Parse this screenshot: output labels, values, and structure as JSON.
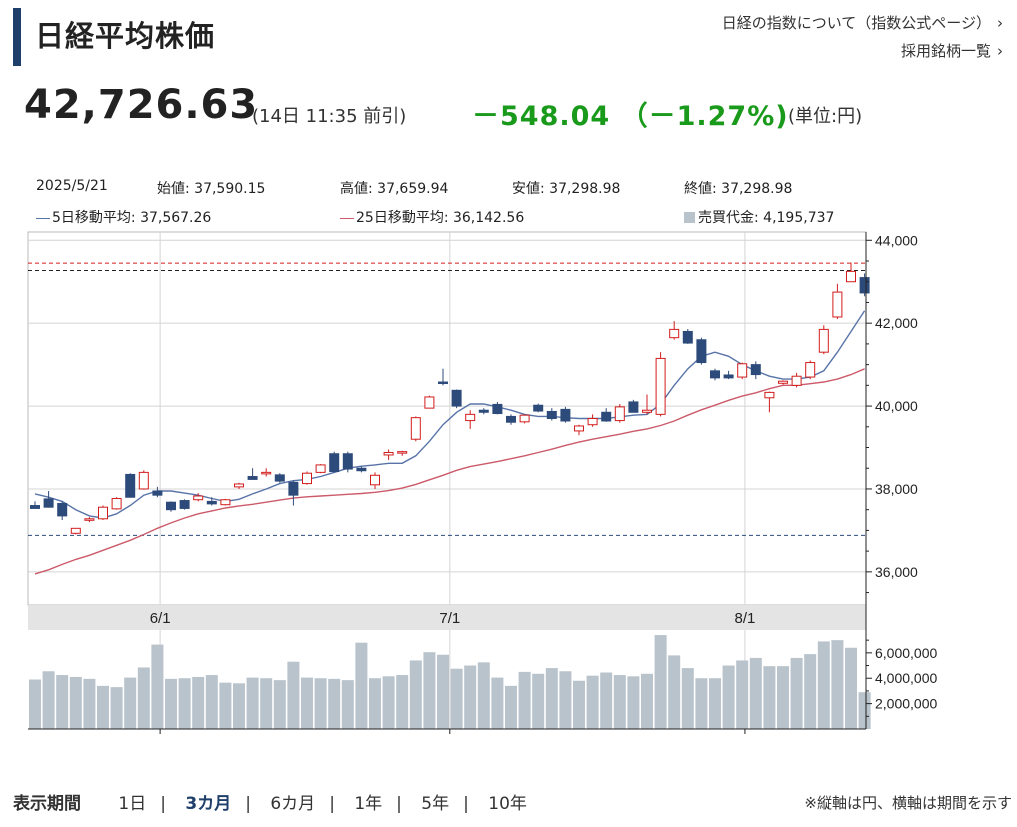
{
  "header": {
    "title": "日経平均株価",
    "links": [
      "日経の指数について（指数公式ページ）",
      "採用銘柄一覧"
    ],
    "link_chevron": "chevron-right-icon"
  },
  "quote": {
    "price": "42,726.63",
    "time": "(14日 11:35 前引)",
    "change": "－548.04 （－1.27%)",
    "unit": "(単位:円)",
    "change_color": "#1a9a1a"
  },
  "info": {
    "date": "2025/5/21",
    "open": "始値: 37,590.15",
    "high": "高値: 37,659.94",
    "low": "安値: 37,298.98",
    "close": "終値: 37,298.98",
    "ma5": "5日移動平均: 37,567.26",
    "ma25": "25日移動平均: 36,142.56",
    "volume": "売買代金: 4,195,737"
  },
  "colors": {
    "up": "#d21c1c",
    "down": "#2d4b7a",
    "ma5": "#5873a8",
    "ma25": "#cc5a6a",
    "volume": "#b8c3cc"
  },
  "chart_data": {
    "type": "candlestick",
    "xaxis_labels": [
      "6/1",
      "7/1",
      "8/1"
    ],
    "yaxis_ticks": [
      "44,000",
      "42,000",
      "40,000",
      "38,000",
      "36,000"
    ],
    "ylim": [
      35200,
      44200
    ],
    "volume_ticks": [
      "6,000,000",
      "4,000,000",
      "2,000,000"
    ],
    "volume_ylim": [
      0,
      7800000
    ],
    "reference_lines": {
      "high_marker": 43450,
      "prev_close_marker": 43270,
      "low_marker": 36880
    },
    "candles": [
      {
        "o": 37600,
        "h": 37700,
        "l": 37550,
        "c": 37530
      },
      {
        "o": 37760,
        "h": 37950,
        "l": 37550,
        "c": 37560
      },
      {
        "o": 37650,
        "h": 37700,
        "l": 37250,
        "c": 37350
      },
      {
        "o": 36930,
        "h": 37000,
        "l": 36900,
        "c": 37050
      },
      {
        "o": 37260,
        "h": 37320,
        "l": 37200,
        "c": 37280
      },
      {
        "o": 37280,
        "h": 37600,
        "l": 37250,
        "c": 37560
      },
      {
        "o": 37520,
        "h": 37800,
        "l": 37500,
        "c": 37770
      },
      {
        "o": 38350,
        "h": 38380,
        "l": 37800,
        "c": 37800
      },
      {
        "o": 38000,
        "h": 38450,
        "l": 37980,
        "c": 38400
      },
      {
        "o": 37950,
        "h": 38050,
        "l": 37800,
        "c": 37850
      },
      {
        "o": 37680,
        "h": 37700,
        "l": 37450,
        "c": 37500
      },
      {
        "o": 37720,
        "h": 37750,
        "l": 37500,
        "c": 37530
      },
      {
        "o": 37740,
        "h": 37900,
        "l": 37700,
        "c": 37830
      },
      {
        "o": 37700,
        "h": 37800,
        "l": 37600,
        "c": 37640
      },
      {
        "o": 37620,
        "h": 37760,
        "l": 37600,
        "c": 37740
      },
      {
        "o": 38050,
        "h": 38150,
        "l": 38000,
        "c": 38120
      },
      {
        "o": 38300,
        "h": 38500,
        "l": 38250,
        "c": 38230
      },
      {
        "o": 38380,
        "h": 38500,
        "l": 38300,
        "c": 38400
      },
      {
        "o": 38340,
        "h": 38380,
        "l": 38150,
        "c": 38190
      },
      {
        "o": 38160,
        "h": 38200,
        "l": 37600,
        "c": 37850
      },
      {
        "o": 38130,
        "h": 38420,
        "l": 38100,
        "c": 38380
      },
      {
        "o": 38400,
        "h": 38600,
        "l": 38380,
        "c": 38580
      },
      {
        "o": 38850,
        "h": 38900,
        "l": 38400,
        "c": 38420
      },
      {
        "o": 38850,
        "h": 38900,
        "l": 38400,
        "c": 38480
      },
      {
        "o": 38500,
        "h": 38540,
        "l": 38400,
        "c": 38440
      },
      {
        "o": 38100,
        "h": 38400,
        "l": 38000,
        "c": 38330
      },
      {
        "o": 38820,
        "h": 38950,
        "l": 38700,
        "c": 38880
      },
      {
        "o": 38880,
        "h": 38920,
        "l": 38800,
        "c": 38900
      },
      {
        "o": 39200,
        "h": 39750,
        "l": 39150,
        "c": 39720
      },
      {
        "o": 39950,
        "h": 40250,
        "l": 39950,
        "c": 40220
      },
      {
        "o": 40580,
        "h": 40900,
        "l": 40500,
        "c": 40550
      },
      {
        "o": 40380,
        "h": 40400,
        "l": 39950,
        "c": 40000
      },
      {
        "o": 39650,
        "h": 39900,
        "l": 39450,
        "c": 39800
      },
      {
        "o": 39900,
        "h": 39950,
        "l": 39800,
        "c": 39850
      },
      {
        "o": 40040,
        "h": 40100,
        "l": 39800,
        "c": 39820
      },
      {
        "o": 39750,
        "h": 39800,
        "l": 39550,
        "c": 39610
      },
      {
        "o": 39620,
        "h": 39800,
        "l": 39580,
        "c": 39780
      },
      {
        "o": 40020,
        "h": 40060,
        "l": 39850,
        "c": 39880
      },
      {
        "o": 39870,
        "h": 39950,
        "l": 39650,
        "c": 39700
      },
      {
        "o": 39920,
        "h": 39980,
        "l": 39600,
        "c": 39640
      },
      {
        "o": 39400,
        "h": 39550,
        "l": 39300,
        "c": 39520
      },
      {
        "o": 39550,
        "h": 39800,
        "l": 39500,
        "c": 39700
      },
      {
        "o": 39850,
        "h": 39950,
        "l": 39620,
        "c": 39640
      },
      {
        "o": 39650,
        "h": 40050,
        "l": 39600,
        "c": 39980
      },
      {
        "o": 40100,
        "h": 40150,
        "l": 39850,
        "c": 39850
      },
      {
        "o": 39850,
        "h": 40280,
        "l": 39800,
        "c": 39900
      },
      {
        "o": 39800,
        "h": 41300,
        "l": 39750,
        "c": 41150
      },
      {
        "o": 41650,
        "h": 42050,
        "l": 41600,
        "c": 41850
      },
      {
        "o": 41800,
        "h": 41860,
        "l": 41500,
        "c": 41520
      },
      {
        "o": 41600,
        "h": 41650,
        "l": 41000,
        "c": 41050
      },
      {
        "o": 40850,
        "h": 40900,
        "l": 40620,
        "c": 40680
      },
      {
        "o": 40750,
        "h": 40850,
        "l": 40650,
        "c": 40680
      },
      {
        "o": 40700,
        "h": 41050,
        "l": 40650,
        "c": 41020
      },
      {
        "o": 41000,
        "h": 41080,
        "l": 40650,
        "c": 40760
      },
      {
        "o": 40200,
        "h": 40350,
        "l": 39850,
        "c": 40330
      },
      {
        "o": 40550,
        "h": 40620,
        "l": 40520,
        "c": 40600
      },
      {
        "o": 40500,
        "h": 40800,
        "l": 40450,
        "c": 40720
      },
      {
        "o": 40700,
        "h": 41100,
        "l": 40650,
        "c": 41050
      },
      {
        "o": 41300,
        "h": 41950,
        "l": 41250,
        "c": 41850
      },
      {
        "o": 42150,
        "h": 42950,
        "l": 42100,
        "c": 42750
      },
      {
        "o": 43000,
        "h": 43460,
        "l": 43000,
        "c": 43250
      },
      {
        "o": 43100,
        "h": 43200,
        "l": 42650,
        "c": 42730
      }
    ],
    "ma5": [
      37880,
      37800,
      37700,
      37500,
      37350,
      37300,
      37400,
      37600,
      37850,
      37950,
      37950,
      37900,
      37850,
      37770,
      37700,
      37750,
      37880,
      38000,
      38130,
      38200,
      38230,
      38300,
      38400,
      38500,
      38550,
      38580,
      38620,
      38620,
      38800,
      39150,
      39550,
      39850,
      40050,
      40050,
      39980,
      39900,
      39800,
      39750,
      39750,
      39720,
      39700,
      39700,
      39700,
      39740,
      39780,
      39800,
      40050,
      40500,
      40900,
      41200,
      41300,
      41200,
      41000,
      40850,
      40720,
      40650,
      40650,
      40700,
      40850,
      41300,
      41800,
      42300
    ],
    "ma25": [
      35950,
      36050,
      36180,
      36300,
      36400,
      36520,
      36640,
      36760,
      36900,
      37050,
      37180,
      37300,
      37400,
      37470,
      37540,
      37590,
      37630,
      37680,
      37730,
      37780,
      37810,
      37830,
      37850,
      37870,
      37890,
      37920,
      37960,
      38020,
      38110,
      38220,
      38330,
      38450,
      38540,
      38600,
      38660,
      38730,
      38800,
      38880,
      38960,
      39050,
      39130,
      39200,
      39260,
      39320,
      39390,
      39450,
      39530,
      39640,
      39780,
      39910,
      40020,
      40140,
      40240,
      40320,
      40420,
      40500,
      40500,
      40540,
      40580,
      40650,
      40760,
      40900
    ],
    "volume": [
      3900000,
      4550000,
      4250000,
      4100000,
      3950000,
      3400000,
      3300000,
      4050000,
      4850000,
      6650000,
      3950000,
      4000000,
      4100000,
      4250000,
      3650000,
      3600000,
      4050000,
      4000000,
      3850000,
      5300000,
      4050000,
      4000000,
      3950000,
      3850000,
      6800000,
      4000000,
      4150000,
      4250000,
      5400000,
      6050000,
      5850000,
      4750000,
      5000000,
      5250000,
      4050000,
      3400000,
      4500000,
      4350000,
      4800000,
      4550000,
      3800000,
      4200000,
      4450000,
      4250000,
      4150000,
      4350000,
      7400000,
      5800000,
      4800000,
      4000000,
      4000000,
      5000000,
      5400000,
      5600000,
      4950000,
      4950000,
      5600000,
      5900000,
      6900000,
      7000000,
      6400000,
      2900000
    ]
  }
}
